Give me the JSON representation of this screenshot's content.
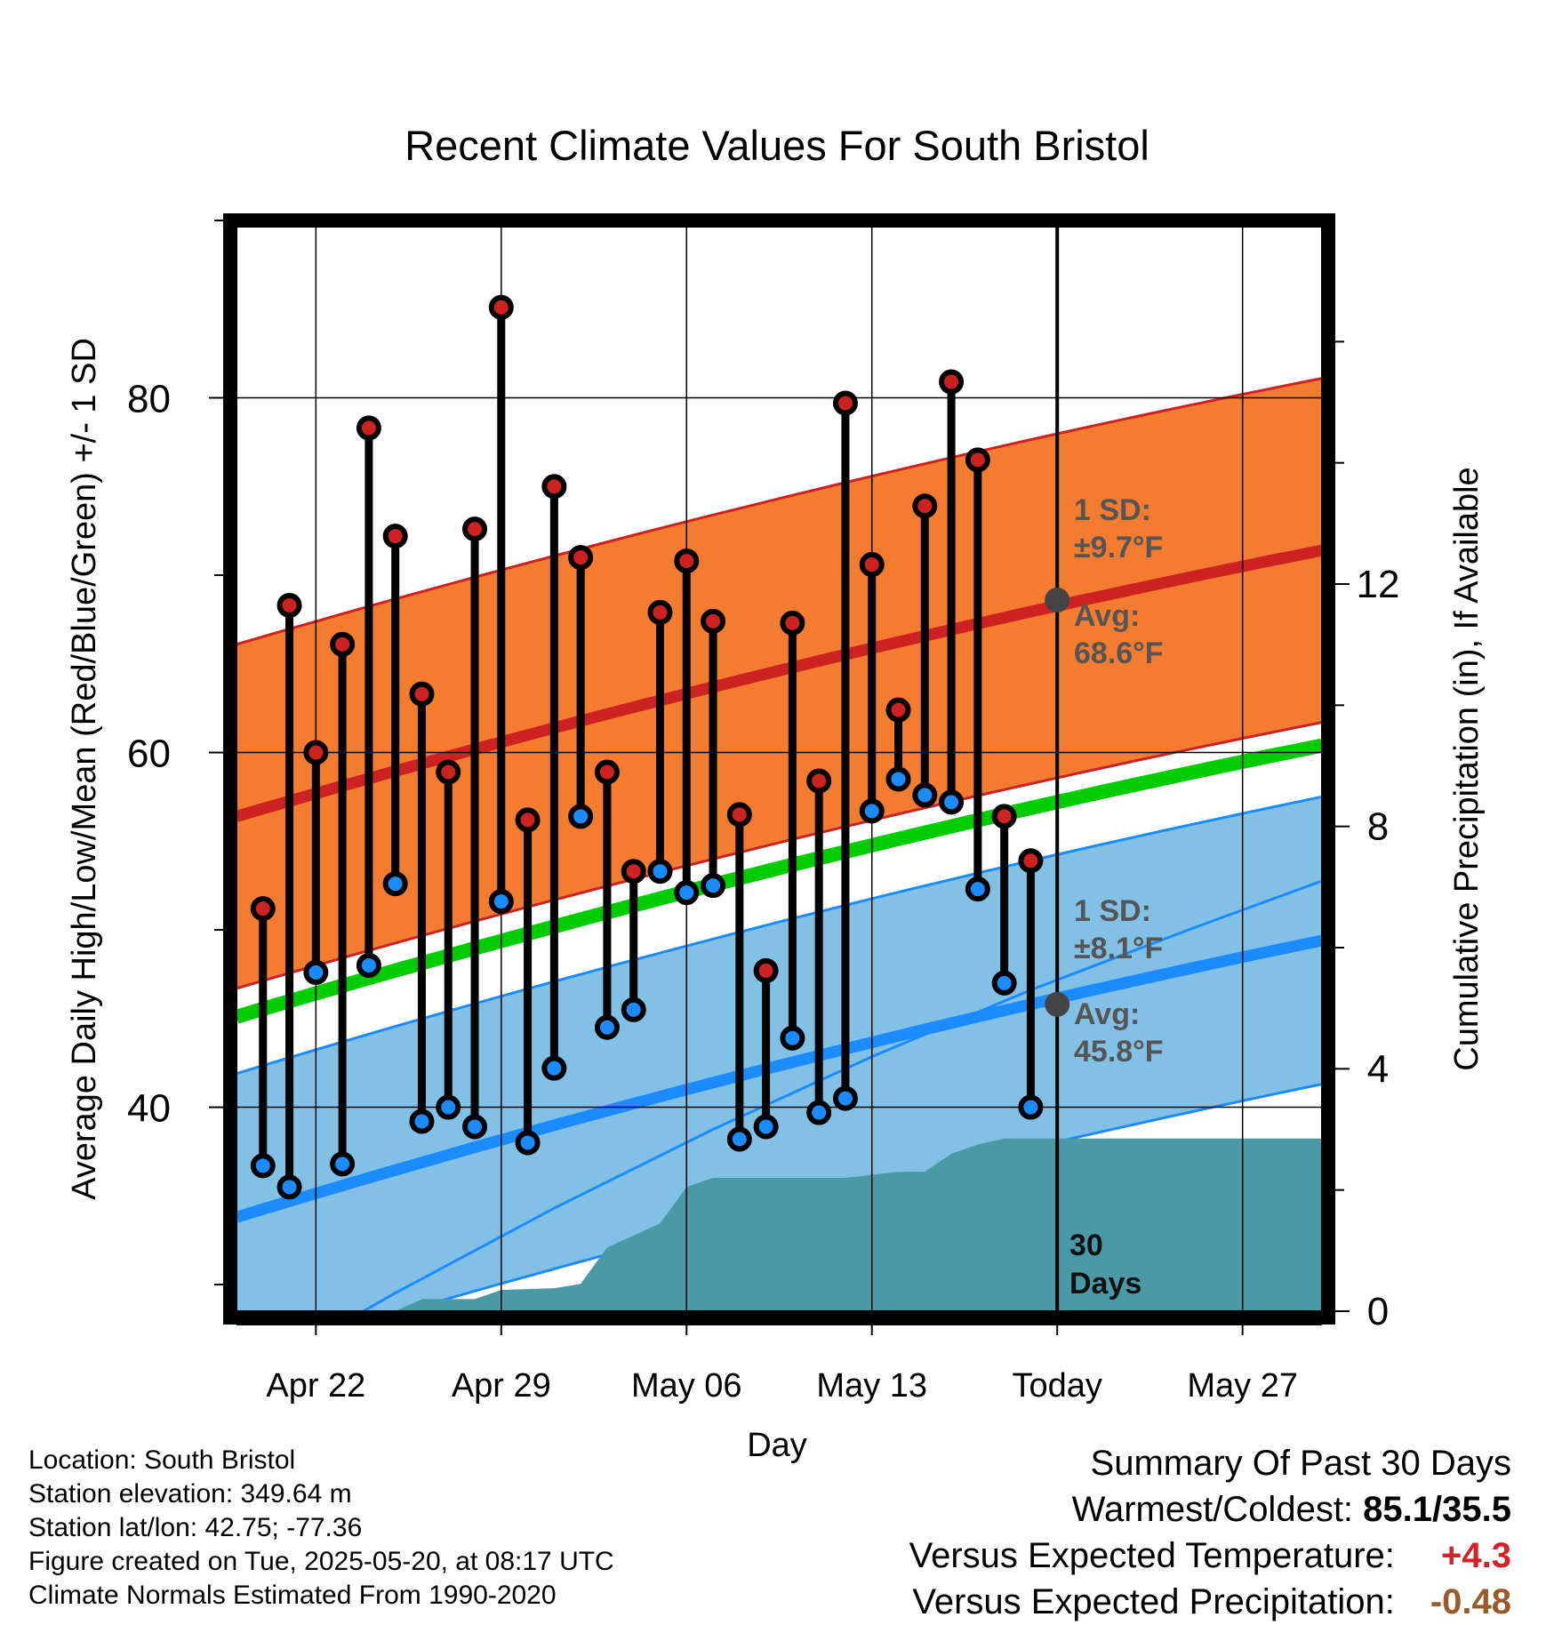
{
  "title": "Recent Climate Values For South Bristol",
  "chart_data": {
    "type": "line",
    "title": "Recent Climate Values For South Bristol",
    "xlabel": "Day",
    "ylabel": "Average Daily High/Low/Mean (Red/Blue/Green) +/- 1 SD",
    "y2label": "Cumulative Precipitation (in), If Available",
    "ylim": [
      28.5,
      90
    ],
    "y2lim": [
      0,
      18
    ],
    "yticks": [
      "40",
      "60",
      "80"
    ],
    "y2ticks": [
      "0",
      "4",
      "8",
      "12"
    ],
    "xlim": [
      "2025-04-19",
      "2025-05-30"
    ],
    "xtick_dates": [
      "2025-04-22",
      "2025-04-29",
      "2025-05-06",
      "2025-05-13",
      "2025-05-20",
      "2025-05-27"
    ],
    "xtick_labels": [
      "Apr 22",
      "Apr 29",
      "May 06",
      "May 13",
      "Today",
      "May 27"
    ],
    "today": "2025-05-20",
    "days": [
      "2025-04-20",
      "2025-04-21",
      "2025-04-22",
      "2025-04-23",
      "2025-04-24",
      "2025-04-25",
      "2025-04-26",
      "2025-04-27",
      "2025-04-28",
      "2025-04-29",
      "2025-04-30",
      "2025-05-01",
      "2025-05-02",
      "2025-05-03",
      "2025-05-04",
      "2025-05-05",
      "2025-05-06",
      "2025-05-07",
      "2025-05-08",
      "2025-05-09",
      "2025-05-10",
      "2025-05-11",
      "2025-05-12",
      "2025-05-13",
      "2025-05-14",
      "2025-05-15",
      "2025-05-16",
      "2025-05-17",
      "2025-05-18",
      "2025-05-19"
    ],
    "highs": [
      51.2,
      68.3,
      60.0,
      66.1,
      78.3,
      72.2,
      63.3,
      58.9,
      72.6,
      85.1,
      56.2,
      75.0,
      71.0,
      58.9,
      53.3,
      67.9,
      70.8,
      67.4,
      56.5,
      47.7,
      67.3,
      58.4,
      79.7,
      70.6,
      62.4,
      73.9,
      80.9,
      76.5,
      56.4,
      53.9
    ],
    "lows": [
      36.7,
      35.5,
      47.6,
      36.8,
      48.0,
      52.6,
      39.2,
      40.0,
      38.9,
      51.6,
      38.0,
      42.2,
      56.4,
      44.5,
      45.5,
      53.3,
      52.1,
      52.5,
      38.2,
      38.9,
      43.9,
      39.7,
      40.5,
      56.7,
      58.5,
      57.6,
      57.2,
      52.3,
      47.0,
      40.0
    ],
    "normals": {
      "dates": [
        "2025-04-19",
        "2025-05-30"
      ],
      "high_avg": [
        56.4,
        71.4
      ],
      "high_sd": 9.7,
      "low_avg": [
        33.8,
        49.4
      ],
      "low_sd": 8.1,
      "mean_avg": [
        45.1,
        60.4
      ]
    },
    "precip_normal": {
      "dates": [
        "2025-04-19",
        "2025-04-25",
        "2025-05-01",
        "2025-05-07",
        "2025-05-13",
        "2025-05-19",
        "2025-05-25",
        "2025-05-30"
      ],
      "values": [
        -1.2,
        0.3,
        1.7,
        3.0,
        4.2,
        5.3,
        6.3,
        7.1
      ]
    },
    "precip_observed": {
      "dates": [
        "2025-04-19",
        "2025-04-25",
        "2025-04-26",
        "2025-04-28",
        "2025-04-29",
        "2025-05-01",
        "2025-05-02",
        "2025-05-03",
        "2025-05-04",
        "2025-05-05",
        "2025-05-06",
        "2025-05-07",
        "2025-05-12",
        "2025-05-13",
        "2025-05-14",
        "2025-05-15",
        "2025-05-16",
        "2025-05-17",
        "2025-05-18",
        "2025-05-19",
        "2025-05-30"
      ],
      "values": [
        0,
        0,
        0.2,
        0.2,
        0.35,
        0.38,
        0.45,
        1.05,
        1.25,
        1.45,
        2.05,
        2.2,
        2.2,
        2.25,
        2.3,
        2.3,
        2.6,
        2.75,
        2.85,
        2.85,
        2.85
      ]
    },
    "annotations": {
      "high": {
        "sd_label": "1 SD:",
        "sd_value": "±9.7°F",
        "avg_label": "Avg:",
        "avg_value": "68.6°F",
        "avg_point": 68.6
      },
      "low": {
        "sd_label": "1 SD:",
        "sd_value": "±8.1°F",
        "avg_label": "Avg:",
        "avg_value": "45.8°F",
        "avg_point": 45.8
      },
      "period_count": "30",
      "period_unit": "Days"
    },
    "colors": {
      "high_band": "#f47c30",
      "high_line": "#cc2222",
      "low_band": "#82c0e6",
      "low_line": "#1a8cff",
      "mean_line": "#00cc00",
      "precip_fill": "#4a9aa5",
      "high_marker": "#cc2222",
      "low_marker": "#1a8cff",
      "avg_point": "#444444"
    },
    "grid": true
  },
  "info": {
    "location": "Location: South Bristol",
    "elevation": "Station elevation: 349.64 m",
    "latlon": "Station lat/lon: 42.75; -77.36",
    "created": "Figure created on Tue, 2025-05-20, at 08:17 UTC",
    "normals": "Climate Normals Estimated From 1990-2020"
  },
  "summary": {
    "heading": "Summary Of Past 30 Days",
    "warm_label": "Warmest/Coldest:",
    "warm_value": "85.1/35.5",
    "temp_label": "Versus Expected Temperature:",
    "temp_value": "+4.3",
    "precip_label": "Versus Expected Precipitation:",
    "precip_value": "-0.48"
  }
}
